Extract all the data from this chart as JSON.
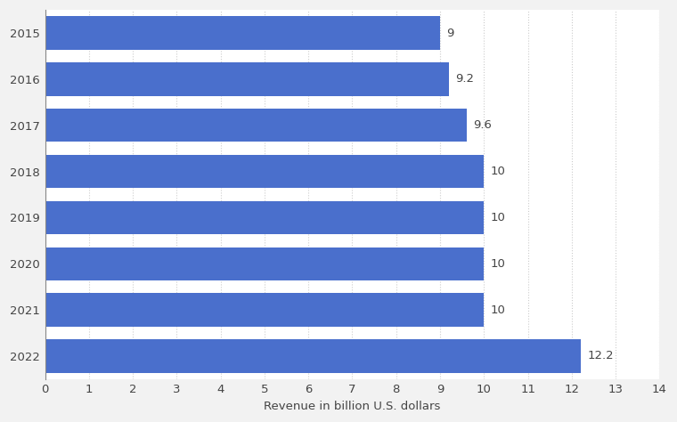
{
  "years": [
    "2015",
    "2016",
    "2017",
    "2018",
    "2019",
    "2020",
    "2021",
    "2022"
  ],
  "values": [
    9,
    9.2,
    9.6,
    10,
    10,
    10,
    10,
    12.2
  ],
  "labels": [
    "9",
    "9.2",
    "9.6",
    "10",
    "10",
    "10",
    "10",
    "12.2"
  ],
  "bar_color": "#4a6fcc",
  "background_color": "#f2f2f2",
  "row_light_color": "#ffffff",
  "row_dark_color": "#e8e8ee",
  "xlabel": "Revenue in billion U.S. dollars",
  "xlim": [
    0,
    14
  ],
  "xticks": [
    0,
    1,
    2,
    3,
    4,
    5,
    6,
    7,
    8,
    9,
    10,
    11,
    12,
    13,
    14
  ],
  "bar_height": 0.72,
  "label_fontsize": 9.5,
  "xlabel_fontsize": 9.5,
  "tick_fontsize": 9.5,
  "grid_color": "#cccccc"
}
